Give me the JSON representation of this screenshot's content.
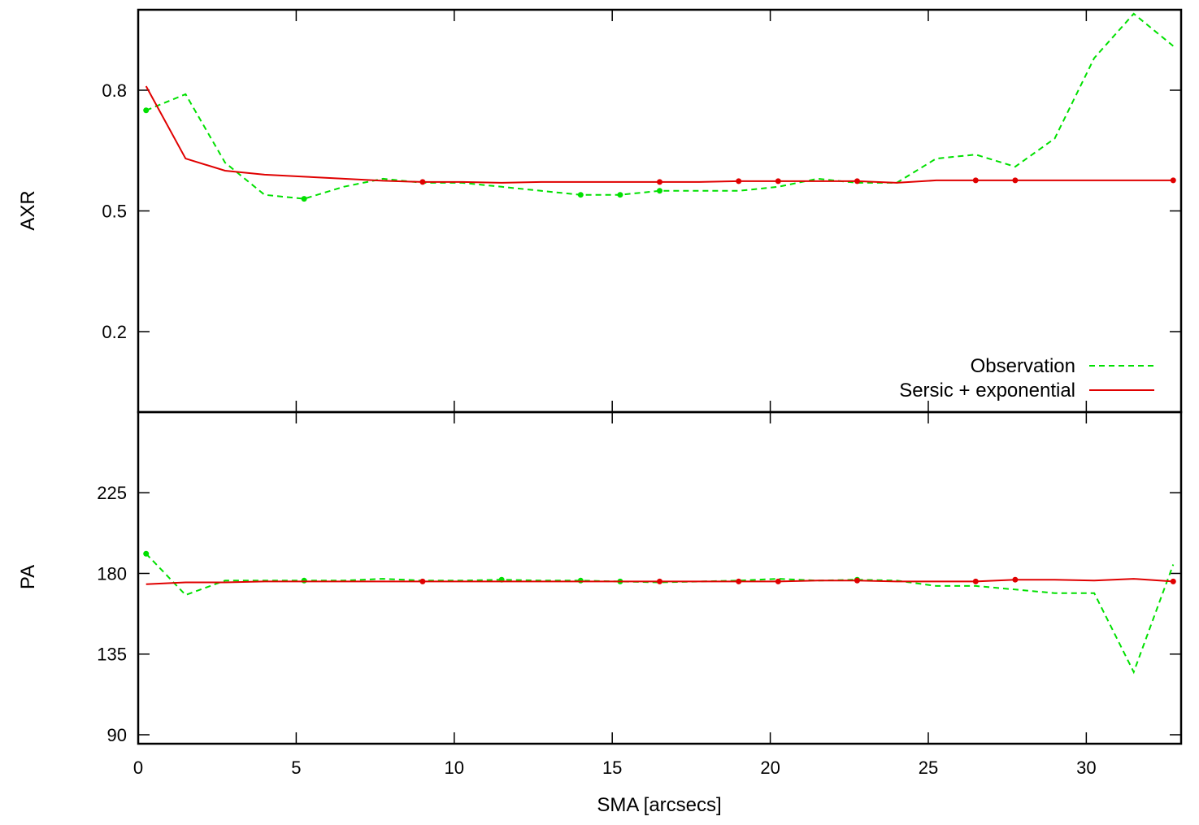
{
  "colors": {
    "observation": "#00e000",
    "model": "#e00000"
  },
  "chart_data": [
    {
      "type": "line",
      "panel": "top",
      "ylabel": "AXR",
      "xlabel": "",
      "xlim": [
        0,
        33
      ],
      "ylim": [
        0,
        1
      ],
      "yticks": [
        0.2,
        0.5,
        0.8
      ],
      "ytick_labels": [
        "0.2",
        "0.5",
        "0.8"
      ],
      "xticks": [
        0,
        5,
        10,
        15,
        20,
        25,
        30
      ],
      "legend": {
        "position": "bottom-right",
        "entries": [
          "Observation",
          "Sersic + exponential"
        ]
      },
      "series": [
        {
          "name": "Observation",
          "style": "dashed",
          "x": [
            0.25,
            1.5,
            2.75,
            4.0,
            5.25,
            6.5,
            7.75,
            9.0,
            10.25,
            11.5,
            12.75,
            14.0,
            15.25,
            16.5,
            17.75,
            19.0,
            20.25,
            21.5,
            22.75,
            24.0,
            25.25,
            26.5,
            27.75,
            29.0,
            30.25,
            31.5,
            32.75
          ],
          "values": [
            0.75,
            0.79,
            0.62,
            0.54,
            0.53,
            0.56,
            0.58,
            0.57,
            0.57,
            0.56,
            0.55,
            0.54,
            0.54,
            0.55,
            0.55,
            0.55,
            0.56,
            0.58,
            0.57,
            0.57,
            0.63,
            0.64,
            0.61,
            0.68,
            0.88,
            0.99,
            0.91
          ],
          "markers_x": [
            0.25,
            5.25,
            14.0,
            15.25,
            16.5
          ]
        },
        {
          "name": "Sersic + exponential",
          "style": "solid",
          "x": [
            0.25,
            1.5,
            2.75,
            4.0,
            5.25,
            6.5,
            7.75,
            9.0,
            10.25,
            11.5,
            12.75,
            14.0,
            15.25,
            16.5,
            17.75,
            19.0,
            20.25,
            21.5,
            22.75,
            24.0,
            25.25,
            26.5,
            27.75,
            29.0,
            30.25,
            31.5,
            32.75
          ],
          "values": [
            0.81,
            0.63,
            0.6,
            0.59,
            0.585,
            0.58,
            0.575,
            0.572,
            0.572,
            0.57,
            0.572,
            0.572,
            0.572,
            0.572,
            0.572,
            0.574,
            0.574,
            0.574,
            0.574,
            0.57,
            0.576,
            0.576,
            0.576,
            0.576,
            0.576,
            0.576,
            0.576
          ],
          "markers_x": [
            9.0,
            16.5,
            19.0,
            20.25,
            22.75,
            26.5,
            27.75,
            32.75
          ]
        }
      ]
    },
    {
      "type": "line",
      "panel": "bottom",
      "ylabel": "PA",
      "xlabel": "SMA [arcsecs]",
      "xlim": [
        0,
        33
      ],
      "ylim": [
        85,
        270
      ],
      "yticks": [
        90,
        135,
        180,
        225
      ],
      "ytick_labels": [
        "90",
        "135",
        "180",
        "225"
      ],
      "xticks": [
        0,
        5,
        10,
        15,
        20,
        25,
        30
      ],
      "xtick_labels": [
        "0",
        "5",
        "10",
        "15",
        "20",
        "25",
        "30"
      ],
      "series": [
        {
          "name": "Observation",
          "style": "dashed",
          "x": [
            0.25,
            1.5,
            2.75,
            4.0,
            5.25,
            6.5,
            7.75,
            9.0,
            10.25,
            11.5,
            12.75,
            14.0,
            15.25,
            16.5,
            17.75,
            19.0,
            20.25,
            21.5,
            22.75,
            24.0,
            25.25,
            26.5,
            27.75,
            29.0,
            30.25,
            31.5,
            32.75
          ],
          "values": [
            191,
            168,
            176,
            176,
            176,
            176,
            177,
            176,
            176,
            176.5,
            176,
            176,
            175.5,
            175,
            175.5,
            176,
            177,
            176,
            176.5,
            176,
            173,
            173,
            171,
            169,
            169,
            125,
            185
          ],
          "markers_x": [
            0.25,
            5.25,
            11.5,
            14.0,
            15.25,
            22.75
          ]
        },
        {
          "name": "Sersic + exponential",
          "style": "solid",
          "x": [
            0.25,
            1.5,
            2.75,
            4.0,
            5.25,
            6.5,
            7.75,
            9.0,
            10.25,
            11.5,
            12.75,
            14.0,
            15.25,
            16.5,
            17.75,
            19.0,
            20.25,
            21.5,
            22.75,
            24.0,
            25.25,
            26.5,
            27.75,
            29.0,
            30.25,
            31.5,
            32.75
          ],
          "values": [
            174,
            175,
            175,
            175.5,
            175.5,
            175.5,
            175.5,
            175.5,
            175.5,
            175.5,
            175.5,
            175.5,
            175.5,
            175.5,
            175.5,
            175.5,
            175.5,
            176,
            176,
            175.5,
            175.5,
            175.5,
            176.5,
            176.5,
            176,
            177,
            175.5
          ],
          "markers_x": [
            9.0,
            16.5,
            19.0,
            20.25,
            22.75,
            26.5,
            27.75,
            32.75
          ]
        }
      ]
    }
  ]
}
